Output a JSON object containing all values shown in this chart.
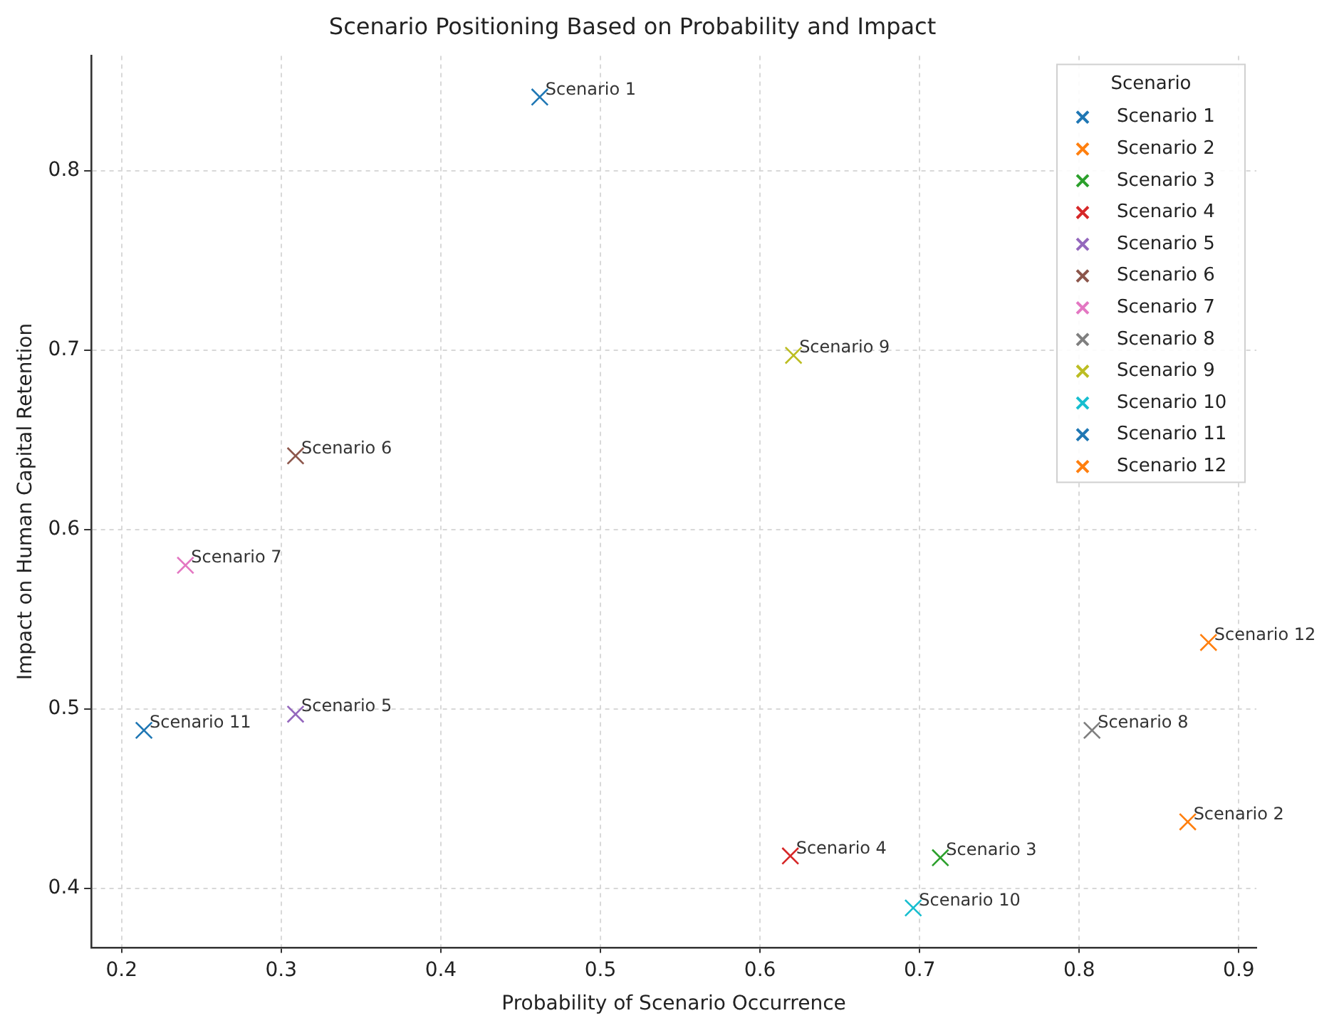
{
  "chart_data": {
    "type": "scatter",
    "title": "Scenario Positioning Based on Probability and Impact",
    "xlabel": "Probability of Scenario Occurrence",
    "ylabel": "Impact on Human Capital Retention",
    "legend_title": "Scenario",
    "legend": "top right",
    "grid": true,
    "marker": "cross",
    "xlim": [
      0.181,
      0.911
    ],
    "xticks": [
      0.2,
      0.3,
      0.4,
      0.5,
      0.6,
      0.7,
      0.8,
      0.9
    ],
    "ylim": [
      0.367,
      0.864
    ],
    "yticks": [
      0.4,
      0.5,
      0.6,
      0.7,
      0.8
    ],
    "series": [
      {
        "name": "Scenario 1",
        "color": "#1f77b4",
        "x": [
          0.462
        ],
        "values": [
          0.841
        ]
      },
      {
        "name": "Scenario 2",
        "color": "#ff7f0e",
        "x": [
          0.868
        ],
        "values": [
          0.437
        ]
      },
      {
        "name": "Scenario 3",
        "color": "#2ca02c",
        "x": [
          0.713
        ],
        "values": [
          0.417
        ]
      },
      {
        "name": "Scenario 4",
        "color": "#d62728",
        "x": [
          0.619
        ],
        "values": [
          0.418
        ]
      },
      {
        "name": "Scenario 5",
        "color": "#9467bd",
        "x": [
          0.309
        ],
        "values": [
          0.497
        ]
      },
      {
        "name": "Scenario 6",
        "color": "#8c564b",
        "x": [
          0.309
        ],
        "values": [
          0.641
        ]
      },
      {
        "name": "Scenario 7",
        "color": "#e377c2",
        "x": [
          0.24
        ],
        "values": [
          0.58
        ]
      },
      {
        "name": "Scenario 8",
        "color": "#7f7f7f",
        "x": [
          0.808
        ],
        "values": [
          0.488
        ]
      },
      {
        "name": "Scenario 9",
        "color": "#bcbd22",
        "x": [
          0.621
        ],
        "values": [
          0.697
        ]
      },
      {
        "name": "Scenario 10",
        "color": "#17becf",
        "x": [
          0.696
        ],
        "values": [
          0.389
        ]
      },
      {
        "name": "Scenario 11",
        "color": "#1f77b4",
        "x": [
          0.214
        ],
        "values": [
          0.488
        ]
      },
      {
        "name": "Scenario 12",
        "color": "#ff7f0e",
        "x": [
          0.881
        ],
        "values": [
          0.537
        ]
      }
    ]
  }
}
